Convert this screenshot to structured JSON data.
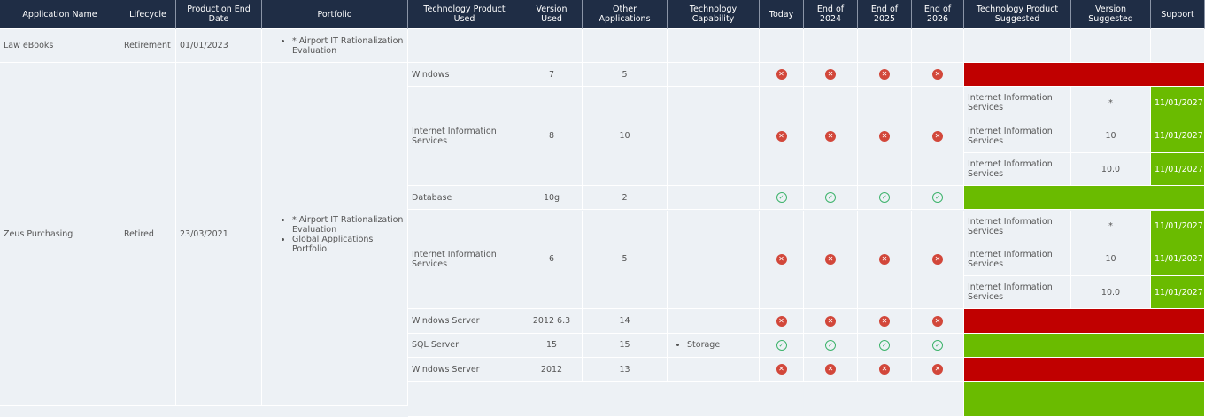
{
  "colors": {
    "header": "#1f2d45",
    "unsupported": "#c00000",
    "supported": "#6abb00",
    "fail_icon": "#d2473a",
    "pass_icon": "#3db36b"
  },
  "headers": [
    "Application Name",
    "Lifecycle",
    "Production End Date",
    "Portfolio",
    "Technology Product Used",
    "Version Used",
    "Other Applications",
    "Technology Capability",
    "Today",
    "End of 2024",
    "End of 2025",
    "End of 2026",
    "Technology Product Suggested",
    "Version Suggested",
    "Support"
  ],
  "apps": [
    {
      "name": "Law eBooks",
      "lifecycle": "Retirement",
      "end_date": "01/01/2023",
      "portfolio": [
        "* Airport IT Rationalization Evaluation"
      ],
      "products": []
    },
    {
      "name": "Zeus Purchasing",
      "lifecycle": "Retired",
      "end_date": "23/03/2021",
      "portfolio": [
        "* Airport IT Rationalization Evaluation",
        "Global Applications Portfolio"
      ],
      "products": [
        {
          "product": "Windows",
          "version": "7",
          "other": "5",
          "capability": [],
          "status": [
            "fail",
            "fail",
            "fail",
            "fail"
          ],
          "support_status": "unsupported",
          "suggested": []
        },
        {
          "product": "Internet Information Services",
          "version": "8",
          "other": "10",
          "capability": [],
          "status": [
            "fail",
            "fail",
            "fail",
            "fail"
          ],
          "support_status": "supported",
          "suggested": [
            {
              "product": "Internet Information Services",
              "version": "*",
              "support": "11/01/2027"
            },
            {
              "product": "Internet Information Services",
              "version": "10",
              "support": "11/01/2027"
            },
            {
              "product": "Internet Information Services",
              "version": "10.0",
              "support": "11/01/2027"
            }
          ]
        },
        {
          "product": "Database",
          "version": "10g",
          "other": "2",
          "capability": [],
          "status": [
            "pass",
            "pass",
            "pass",
            "pass"
          ],
          "support_status": "supported",
          "suggested": []
        },
        {
          "product": "Internet Information Services",
          "version": "6",
          "other": "5",
          "capability": [],
          "status": [
            "fail",
            "fail",
            "fail",
            "fail"
          ],
          "support_status": "supported",
          "suggested": [
            {
              "product": "Internet Information Services",
              "version": "*",
              "support": "11/01/2027"
            },
            {
              "product": "Internet Information Services",
              "version": "10",
              "support": "11/01/2027"
            },
            {
              "product": "Internet Information Services",
              "version": "10.0",
              "support": "11/01/2027"
            }
          ]
        },
        {
          "product": "Windows Server",
          "version": "2012 6.3",
          "other": "14",
          "capability": [],
          "status": [
            "fail",
            "fail",
            "fail",
            "fail"
          ],
          "support_status": "unsupported",
          "suggested": []
        },
        {
          "product": "SQL Server",
          "version": "15",
          "other": "15",
          "capability": [
            "Storage"
          ],
          "status": [
            "pass",
            "pass",
            "pass",
            "pass"
          ],
          "support_status": "supported",
          "suggested": []
        },
        {
          "product": "Windows Server",
          "version": "2012",
          "other": "13",
          "capability": [],
          "status": [
            "fail",
            "fail",
            "fail",
            "fail"
          ],
          "support_status": "unsupported",
          "suggested": []
        }
      ]
    }
  ]
}
